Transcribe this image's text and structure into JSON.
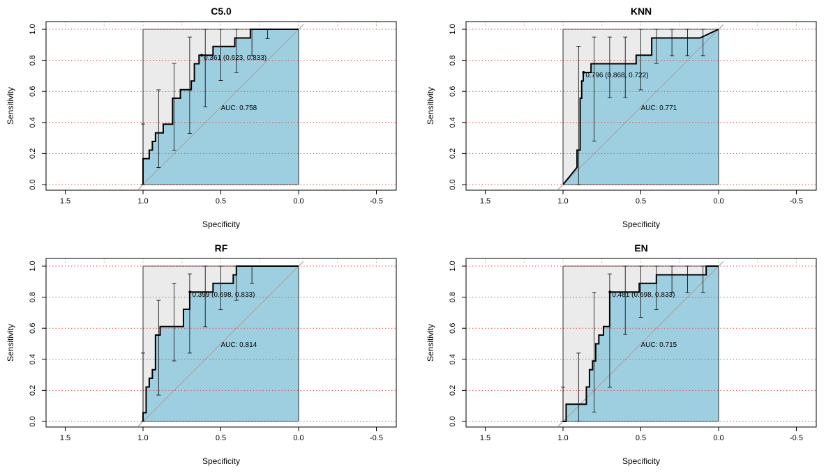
{
  "chart_data": [
    {
      "type": "line",
      "title": "C5.0",
      "xlabel": "Specificity",
      "ylabel": "Sensitivity",
      "xlim": [
        1.6,
        -0.6
      ],
      "ylim": [
        0,
        1
      ],
      "xticks": [
        "1.5",
        "1.0",
        "0.5",
        "0.0",
        "-0.5"
      ],
      "yticks": [
        "0.0",
        "0.2",
        "0.4",
        "0.6",
        "0.8",
        "1.0"
      ],
      "auc_label": "AUC: 0.758",
      "best_threshold_label": "0.361 (0.623, 0.833)",
      "best_point": {
        "specificity": 0.623,
        "sensitivity": 0.833
      },
      "roc": [
        [
          1.0,
          0.0
        ],
        [
          1.0,
          0.167
        ],
        [
          0.96,
          0.167
        ],
        [
          0.96,
          0.222
        ],
        [
          0.94,
          0.222
        ],
        [
          0.94,
          0.278
        ],
        [
          0.92,
          0.278
        ],
        [
          0.92,
          0.333
        ],
        [
          0.87,
          0.333
        ],
        [
          0.87,
          0.389
        ],
        [
          0.81,
          0.389
        ],
        [
          0.81,
          0.556
        ],
        [
          0.76,
          0.556
        ],
        [
          0.76,
          0.611
        ],
        [
          0.69,
          0.611
        ],
        [
          0.69,
          0.667
        ],
        [
          0.67,
          0.667
        ],
        [
          0.67,
          0.778
        ],
        [
          0.64,
          0.778
        ],
        [
          0.64,
          0.833
        ],
        [
          0.55,
          0.833
        ],
        [
          0.55,
          0.889
        ],
        [
          0.46,
          0.889
        ],
        [
          0.41,
          0.889
        ],
        [
          0.41,
          0.944
        ],
        [
          0.31,
          0.944
        ],
        [
          0.31,
          1.0
        ],
        [
          0.0,
          1.0
        ]
      ],
      "error_bars": [
        [
          1.0,
          0.39,
          0.0
        ],
        [
          0.9,
          0.61,
          0.11
        ],
        [
          0.8,
          0.78,
          0.22
        ],
        [
          0.7,
          0.95,
          0.33
        ],
        [
          0.6,
          1.0,
          0.5
        ],
        [
          0.5,
          1.0,
          0.67
        ],
        [
          0.4,
          1.0,
          0.72
        ],
        [
          0.3,
          1.0,
          0.83
        ],
        [
          0.2,
          1.0,
          0.94
        ]
      ]
    },
    {
      "type": "line",
      "title": "KNN",
      "xlabel": "Specificity",
      "ylabel": "Sensitivity",
      "xlim": [
        1.6,
        -0.6
      ],
      "ylim": [
        0,
        1
      ],
      "xticks": [
        "1.5",
        "1.0",
        "0.5",
        "0.0",
        "-0.5"
      ],
      "yticks": [
        "0.0",
        "0.2",
        "0.4",
        "0.6",
        "0.8",
        "1.0"
      ],
      "auc_label": "AUC: 0.771",
      "best_threshold_label": "0.796 (0.868, 0.722)",
      "best_point": {
        "specificity": 0.868,
        "sensitivity": 0.722
      },
      "roc": [
        [
          1.0,
          0.0
        ],
        [
          0.91,
          0.111
        ],
        [
          0.91,
          0.222
        ],
        [
          0.89,
          0.222
        ],
        [
          0.89,
          0.556
        ],
        [
          0.88,
          0.556
        ],
        [
          0.88,
          0.667
        ],
        [
          0.87,
          0.667
        ],
        [
          0.87,
          0.722
        ],
        [
          0.82,
          0.722
        ],
        [
          0.82,
          0.778
        ],
        [
          0.53,
          0.778
        ],
        [
          0.53,
          0.833
        ],
        [
          0.43,
          0.833
        ],
        [
          0.43,
          0.944
        ],
        [
          0.12,
          0.944
        ],
        [
          0.0,
          1.0
        ]
      ],
      "error_bars": [
        [
          0.9,
          0.89,
          0.0
        ],
        [
          0.8,
          0.95,
          0.28
        ],
        [
          0.7,
          0.95,
          0.56
        ],
        [
          0.6,
          0.95,
          0.56
        ],
        [
          0.5,
          1.0,
          0.61
        ],
        [
          0.4,
          1.0,
          0.78
        ],
        [
          0.3,
          1.0,
          0.83
        ],
        [
          0.2,
          1.0,
          0.83
        ],
        [
          0.1,
          1.0,
          0.83
        ]
      ]
    },
    {
      "type": "line",
      "title": "RF",
      "xlabel": "Specificity",
      "ylabel": "Sensitivity",
      "xlim": [
        1.6,
        -0.6
      ],
      "ylim": [
        0,
        1
      ],
      "xticks": [
        "1.5",
        "1.0",
        "0.5",
        "0.0",
        "-0.5"
      ],
      "yticks": [
        "0.0",
        "0.2",
        "0.4",
        "0.6",
        "0.8",
        "1.0"
      ],
      "auc_label": "AUC: 0.814",
      "best_threshold_label": "0.399 (0.698, 0.833)",
      "best_point": {
        "specificity": 0.698,
        "sensitivity": 0.833
      },
      "roc": [
        [
          1.0,
          0.0
        ],
        [
          1.0,
          0.056
        ],
        [
          0.98,
          0.056
        ],
        [
          0.98,
          0.222
        ],
        [
          0.96,
          0.222
        ],
        [
          0.96,
          0.278
        ],
        [
          0.94,
          0.278
        ],
        [
          0.94,
          0.333
        ],
        [
          0.92,
          0.333
        ],
        [
          0.92,
          0.556
        ],
        [
          0.89,
          0.556
        ],
        [
          0.89,
          0.611
        ],
        [
          0.74,
          0.611
        ],
        [
          0.74,
          0.722
        ],
        [
          0.7,
          0.722
        ],
        [
          0.7,
          0.833
        ],
        [
          0.55,
          0.833
        ],
        [
          0.55,
          0.889
        ],
        [
          0.42,
          0.889
        ],
        [
          0.42,
          0.944
        ],
        [
          0.4,
          0.944
        ],
        [
          0.4,
          1.0
        ],
        [
          0.0,
          1.0
        ]
      ],
      "error_bars": [
        [
          1.0,
          0.44,
          0.0
        ],
        [
          0.9,
          0.78,
          0.17
        ],
        [
          0.8,
          0.89,
          0.39
        ],
        [
          0.7,
          0.95,
          0.44
        ],
        [
          0.6,
          1.0,
          0.61
        ],
        [
          0.5,
          1.0,
          0.72
        ],
        [
          0.4,
          1.0,
          0.78
        ],
        [
          0.3,
          1.0,
          0.89
        ]
      ]
    },
    {
      "type": "line",
      "title": "EN",
      "xlabel": "Specificity",
      "ylabel": "Sensitivity",
      "xlim": [
        1.6,
        -0.6
      ],
      "ylim": [
        0,
        1
      ],
      "xticks": [
        "1.5",
        "1.0",
        "0.5",
        "0.0",
        "-0.5"
      ],
      "yticks": [
        "0.0",
        "0.2",
        "0.4",
        "0.6",
        "0.8",
        "1.0"
      ],
      "auc_label": "AUC: 0.715",
      "best_threshold_label": "0.481 (0.698, 0.833)",
      "best_point": {
        "specificity": 0.698,
        "sensitivity": 0.833
      },
      "roc": [
        [
          1.0,
          0.0
        ],
        [
          0.98,
          0.0
        ],
        [
          0.98,
          0.111
        ],
        [
          0.85,
          0.111
        ],
        [
          0.85,
          0.222
        ],
        [
          0.83,
          0.222
        ],
        [
          0.83,
          0.333
        ],
        [
          0.81,
          0.333
        ],
        [
          0.81,
          0.389
        ],
        [
          0.79,
          0.389
        ],
        [
          0.79,
          0.5
        ],
        [
          0.77,
          0.5
        ],
        [
          0.77,
          0.556
        ],
        [
          0.74,
          0.556
        ],
        [
          0.74,
          0.611
        ],
        [
          0.7,
          0.611
        ],
        [
          0.7,
          0.833
        ],
        [
          0.51,
          0.833
        ],
        [
          0.51,
          0.889
        ],
        [
          0.4,
          0.889
        ],
        [
          0.4,
          0.944
        ],
        [
          0.08,
          0.944
        ],
        [
          0.08,
          1.0
        ],
        [
          0.0,
          1.0
        ]
      ],
      "error_bars": [
        [
          1.0,
          0.22,
          0.0
        ],
        [
          0.9,
          0.44,
          0.0
        ],
        [
          0.8,
          0.83,
          0.06
        ],
        [
          0.7,
          0.95,
          0.22
        ],
        [
          0.6,
          1.0,
          0.56
        ],
        [
          0.5,
          1.0,
          0.67
        ],
        [
          0.4,
          1.0,
          0.72
        ],
        [
          0.3,
          1.0,
          0.83
        ],
        [
          0.2,
          1.0,
          0.83
        ],
        [
          0.1,
          1.0,
          0.83
        ]
      ]
    }
  ],
  "colors": {
    "auc_fill": "#9ECFE0",
    "ci_fill": "#EBEBEB",
    "roc_line": "#000000",
    "diagonal": "#A6A6A6",
    "grid_h": "#E34A4A",
    "grid_v": "#8FBF6A"
  }
}
